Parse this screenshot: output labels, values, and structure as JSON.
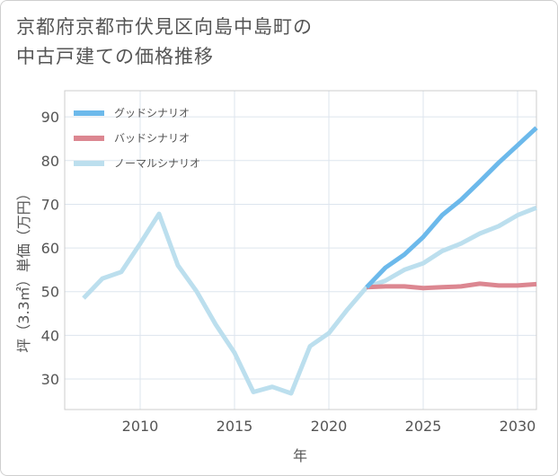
{
  "page": {
    "title_line1": "京都府京都市伏見区向島中島町の",
    "title_line2": "中古戸建ての価格推移"
  },
  "chart_data": {
    "type": "line",
    "xlabel": "年",
    "ylabel": "坪（3.3㎡）単価（万円）",
    "xlim": [
      2006,
      2031
    ],
    "ylim": [
      23,
      96
    ],
    "xticks": [
      2010,
      2015,
      2020,
      2025,
      2030
    ],
    "yticks": [
      30,
      40,
      50,
      60,
      70,
      80,
      90
    ],
    "grid": true,
    "legend_position": "top-left",
    "series": [
      {
        "name": "グッドシナリオ",
        "color": "#6cb9eb",
        "x": [
          2022,
          2023,
          2024,
          2025,
          2026,
          2027,
          2028,
          2029,
          2030,
          2031
        ],
        "values": [
          51,
          55.5,
          58.5,
          62.5,
          67.5,
          71,
          75.2,
          79.5,
          83.5,
          87.5
        ]
      },
      {
        "name": "バッドシナリオ",
        "color": "#dc8791",
        "x": [
          2022,
          2023,
          2024,
          2025,
          2026,
          2027,
          2028,
          2029,
          2030,
          2031
        ],
        "values": [
          51,
          51.2,
          51.2,
          50.8,
          51,
          51.2,
          51.8,
          51.4,
          51.4,
          51.7
        ]
      },
      {
        "name": "ノーマルシナリオ",
        "color": "#bcdfee",
        "x": [
          2007,
          2008,
          2009,
          2010,
          2011,
          2012,
          2013,
          2014,
          2015,
          2016,
          2017,
          2018,
          2019,
          2020,
          2021,
          2022,
          2023,
          2024,
          2025,
          2026,
          2027,
          2028,
          2029,
          2030,
          2031
        ],
        "values": [
          48.5,
          53,
          54.5,
          61,
          67.8,
          56,
          50,
          42.5,
          36,
          27,
          28.2,
          26.7,
          37.5,
          40.5,
          46,
          51,
          52.5,
          55,
          56.5,
          59.3,
          61,
          63.3,
          65,
          67.5,
          69.2
        ]
      }
    ]
  }
}
